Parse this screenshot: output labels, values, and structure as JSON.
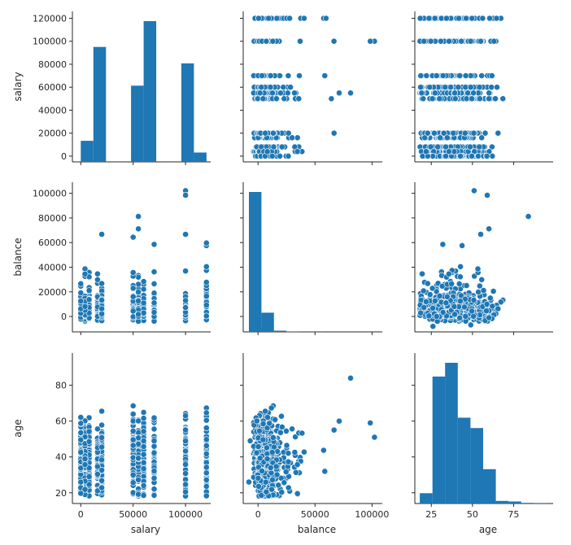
{
  "chart_data": {
    "type": "scatter",
    "title": "",
    "kind": "pairplot",
    "variables": [
      "salary",
      "balance",
      "age"
    ],
    "color": "#1f77b4",
    "axes": {
      "salary": {
        "range": [
          -8000,
          124000
        ],
        "ticks": [
          0,
          50000,
          100000
        ],
        "tick_labels": [
          "0",
          "50000",
          "100000"
        ],
        "ytick_labels": [
          "0",
          "20000",
          "40000",
          "60000",
          "80000",
          "100000",
          "120000"
        ],
        "yticks": [
          0,
          20000,
          40000,
          60000,
          80000,
          100000,
          120000
        ],
        "yrange": [
          -5000,
          126000
        ]
      },
      "balance": {
        "range": [
          -13000,
          109000
        ],
        "ticks": [
          0,
          50000,
          100000
        ],
        "tick_labels": [
          "0",
          "50000",
          "100000"
        ],
        "yticks": [
          0,
          20000,
          40000,
          60000,
          80000,
          100000
        ],
        "ytick_labels": [
          "0",
          "20000",
          "40000",
          "60000",
          "80000",
          "100000"
        ],
        "yrange": [
          -12500,
          109000
        ]
      },
      "age": {
        "range": [
          15,
          99
        ],
        "ticks": [
          25,
          50,
          75
        ],
        "tick_labels": [
          "25",
          "50",
          "75"
        ],
        "yticks": [
          20,
          40,
          60,
          80
        ],
        "ytick_labels": [
          "20",
          "40",
          "60",
          "80"
        ],
        "yrange": [
          14,
          98
        ]
      }
    },
    "salary_levels": [
      0,
      4000,
      8000,
      16000,
      20000,
      50000,
      55000,
      60000,
      70000,
      100000,
      120000
    ],
    "histograms": {
      "salary": {
        "bin_edges": [
          0,
          12000,
          24000,
          36000,
          48000,
          60000,
          72000,
          84000,
          96000,
          108000,
          120000
        ],
        "counts": [
          18000,
          98000,
          0,
          0,
          65000,
          120000,
          0,
          0,
          84000,
          8000
        ]
      },
      "balance": {
        "bin_edges": [
          -8019,
          3000,
          14000,
          25000,
          36000,
          47000,
          58000,
          69000,
          80000,
          91000,
          102127
        ],
        "counts": [
          102000,
          14000,
          900,
          200,
          60,
          30,
          15,
          5,
          3,
          2
        ]
      },
      "age": {
        "bin_edges": [
          18,
          25.7,
          33.4,
          41.1,
          48.8,
          56.5,
          64.2,
          71.9,
          79.6,
          87.3,
          95
        ],
        "counts": [
          6,
          74,
          82,
          50,
          44,
          20,
          1.5,
          1.2,
          0.4,
          0.1
        ]
      }
    },
    "outliers": {
      "balance_vs_salary": [
        [
          100000,
          102127
        ],
        [
          100000,
          98417
        ],
        [
          55000,
          81204
        ],
        [
          55000,
          71188
        ],
        [
          120000,
          59649
        ],
        [
          20000,
          66721
        ],
        [
          50000,
          64343
        ],
        [
          70000,
          58544
        ],
        [
          100000,
          66653
        ]
      ],
      "age_vs_balance": [
        [
          81204,
          84
        ],
        [
          98417,
          59
        ],
        [
          102127,
          51
        ],
        [
          -8019,
          26
        ],
        [
          -6847,
          49
        ],
        [
          71188,
          60
        ],
        [
          66721,
          55
        ],
        [
          58544,
          32
        ]
      ]
    }
  }
}
